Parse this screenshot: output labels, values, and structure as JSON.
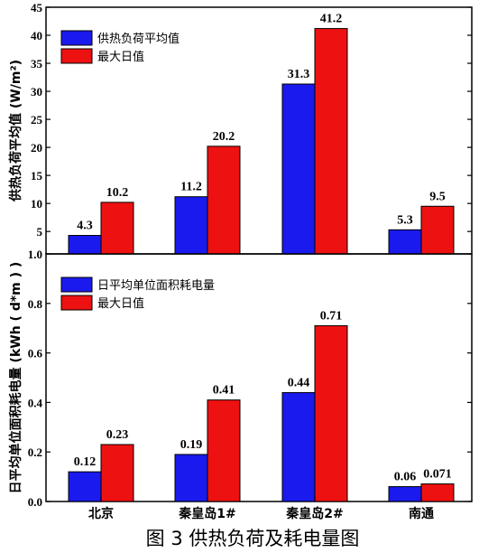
{
  "caption": "图 3  供热负荷及耗电量图",
  "colors": {
    "series1": "#1a1aee",
    "series2": "#ee1111"
  },
  "chart_data": [
    {
      "type": "bar",
      "categories": [
        "北京",
        "秦皇岛1#",
        "秦皇岛2#",
        "南通"
      ],
      "ylabel": "供热负荷平均值 (W/m²)",
      "ylim": [
        1,
        45
      ],
      "yticks": [
        "1.0",
        "5",
        "10",
        "15",
        "20",
        "25",
        "30",
        "35",
        "40",
        "45"
      ],
      "legend_position": "top-left",
      "series": [
        {
          "name": "供热负荷平均值",
          "values": [
            4.3,
            11.2,
            31.3,
            5.3
          ],
          "labels": [
            "4.3",
            "11.2",
            "31.3",
            "5.3"
          ]
        },
        {
          "name": "最大日值",
          "values": [
            10.2,
            20.2,
            41.2,
            9.5
          ],
          "labels": [
            "10.2",
            "20.2",
            "41.2",
            "9.5"
          ]
        }
      ]
    },
    {
      "type": "bar",
      "categories": [
        "北京",
        "秦皇岛1#",
        "秦皇岛2#",
        "南通"
      ],
      "ylabel": "日平均单位面积耗电量 (kWh ( d*m ) )",
      "ylim": [
        0,
        1.0
      ],
      "yticks": [
        "0.0",
        "0.2",
        "0.4",
        "0.6",
        "0.8"
      ],
      "legend_position": "top-left",
      "series": [
        {
          "name": "日平均单位面积耗电量",
          "values": [
            0.12,
            0.19,
            0.44,
            0.06
          ],
          "labels": [
            "0.12",
            "0.19",
            "0.44",
            "0.06"
          ]
        },
        {
          "name": "最大日值",
          "values": [
            0.23,
            0.41,
            0.71,
            0.071
          ],
          "labels": [
            "0.23",
            "0.41",
            "0.71",
            "0.071"
          ]
        }
      ]
    }
  ]
}
